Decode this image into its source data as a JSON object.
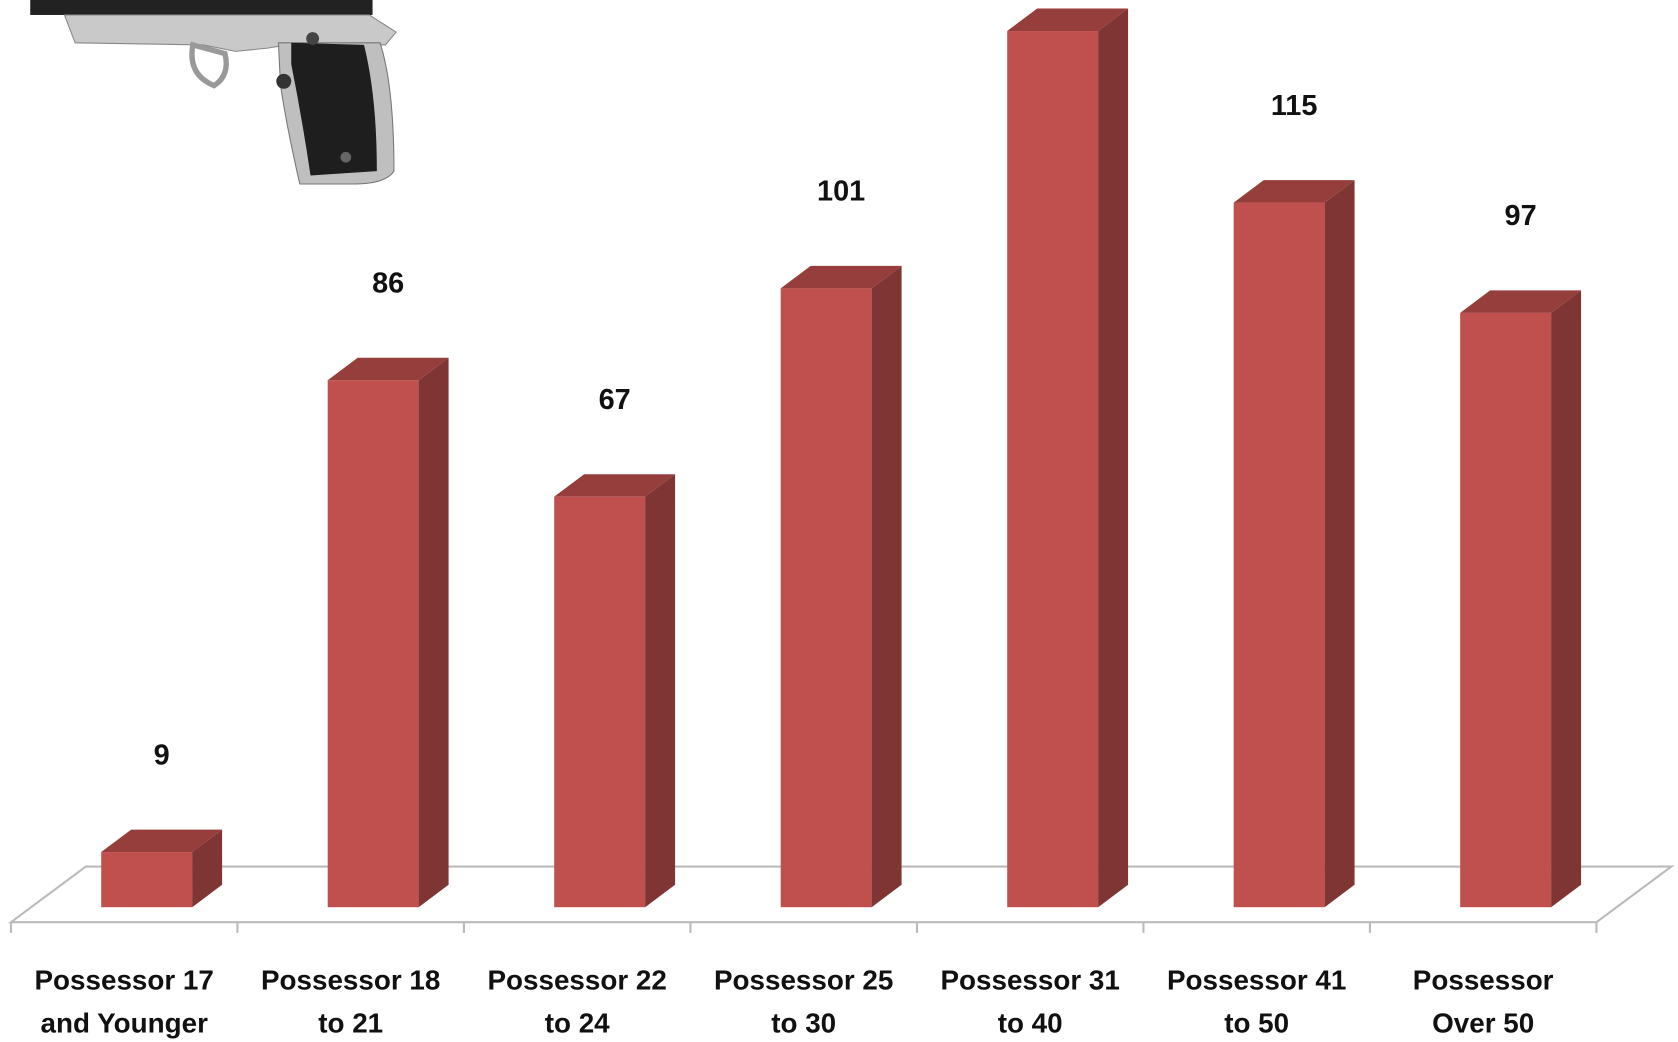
{
  "chart_data": {
    "type": "bar3d",
    "categories": [
      "Possessor 17 and Younger",
      "Possessor 18 to 21",
      "Possessor 22 to 24",
      "Possessor 25 to 30",
      "Possessor 31 to 40",
      "Possessor 41 to 50",
      "Possessor Over 50"
    ],
    "values": [
      9,
      86,
      67,
      101,
      143,
      115,
      97
    ],
    "color": "#c0504d"
  }
}
